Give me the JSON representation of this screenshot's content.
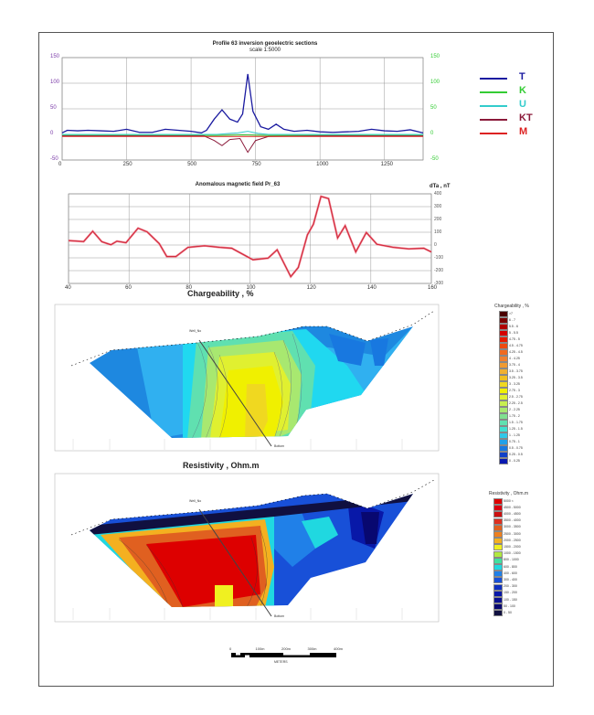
{
  "chart_data": [
    {
      "type": "line",
      "title": "Profile 63 inversion geoelectric sections",
      "subtitle": "scale 1:5000",
      "xlim": [
        0,
        1400
      ],
      "xticks": [
        0,
        250,
        500,
        750,
        1000,
        1250
      ],
      "ylim": [
        -50,
        150
      ],
      "yticks_left": [
        150,
        100,
        50,
        0,
        -50
      ],
      "yticks_right": [
        150,
        100,
        50,
        0,
        -50
      ],
      "legend": "right",
      "series": [
        {
          "name": "T",
          "color": "#1a1aa0",
          "x": [
            0,
            20,
            60,
            100,
            150,
            200,
            250,
            300,
            350,
            400,
            450,
            500,
            540,
            560,
            590,
            620,
            650,
            680,
            700,
            720,
            740,
            770,
            800,
            830,
            860,
            900,
            950,
            1000,
            1050,
            1100,
            1150,
            1200,
            1250,
            1300,
            1350,
            1400
          ],
          "y": [
            3,
            8,
            7,
            8,
            7,
            6,
            10,
            4,
            4,
            10,
            8,
            6,
            3,
            8,
            30,
            48,
            30,
            24,
            40,
            118,
            45,
            15,
            10,
            20,
            10,
            6,
            8,
            5,
            4,
            5,
            6,
            10,
            7,
            6,
            9,
            3
          ]
        },
        {
          "name": "K",
          "color": "#33cc33",
          "x": [
            0,
            200,
            400,
            600,
            700,
            800,
            1000,
            1200,
            1400
          ],
          "y": [
            -2,
            -2,
            -2,
            -2,
            -1,
            -2,
            -2,
            -2,
            -2
          ]
        },
        {
          "name": "U",
          "color": "#33cccc",
          "x": [
            0,
            200,
            400,
            600,
            680,
            720,
            760,
            800,
            1000,
            1200,
            1400
          ],
          "y": [
            0,
            0,
            0,
            0,
            3,
            6,
            2,
            0,
            0,
            0,
            0
          ]
        },
        {
          "name": "KT",
          "color": "#8b1a3a",
          "x": [
            0,
            200,
            400,
            550,
            590,
            620,
            650,
            690,
            720,
            750,
            800,
            1000,
            1200,
            1400
          ],
          "y": [
            -3,
            -3,
            -3,
            -3,
            -12,
            -22,
            -10,
            -8,
            -35,
            -12,
            -4,
            -3,
            -3,
            -3
          ]
        },
        {
          "name": "M",
          "color": "#dd2222",
          "x": [
            0,
            400,
            800,
            1400
          ],
          "y": [
            -4,
            -4,
            -4,
            -4
          ]
        }
      ]
    },
    {
      "type": "line",
      "title": "Anomalous magnetic field  Pr_63",
      "ylabel": "dTa , nT",
      "xlim": [
        40,
        160
      ],
      "xticks": [
        40,
        60,
        80,
        100,
        120,
        140,
        160
      ],
      "ylim": [
        -300,
        400
      ],
      "yticks": [
        400,
        300,
        200,
        100,
        0,
        -100,
        -200,
        -300
      ],
      "series": [
        {
          "name": "dTa",
          "color": "#cc2233",
          "x": [
            40,
            45,
            48,
            51,
            54,
            56,
            59,
            63,
            66,
            70,
            72.5,
            75.5,
            79.5,
            85,
            90,
            94,
            101,
            106,
            109,
            113.5,
            116,
            119,
            121,
            123.5,
            126,
            129,
            131.5,
            135,
            138.5,
            142,
            147.5,
            152.5,
            157.5,
            160
          ],
          "y": [
            35,
            27,
            108,
            26,
            2,
            30,
            18,
            132,
            103,
            11,
            -90,
            -90,
            -18,
            -6,
            -18,
            -25,
            -115,
            -102,
            -37,
            -247,
            -175,
            79,
            163,
            380,
            363,
            55,
            151,
            -54,
            98,
            6,
            -18,
            -30,
            -25,
            -54
          ]
        }
      ]
    },
    {
      "type": "heatmap",
      "title": "Chargeability , %",
      "legend_title": "Chargeability , %",
      "legend": [
        ">7",
        "6 - 7",
        "5.5 - 6",
        "5 - 5.5",
        "4.75 - 5",
        "4.5 - 4.75",
        "4.25 - 4.5",
        "4 - 4.25",
        "3.75 - 4",
        "3.5 - 3.75",
        "3.25 - 3.5",
        "3 - 3.25",
        "2.75 - 3",
        "2.5 - 2.75",
        "2.25 - 2.5",
        "2 - 2.25",
        "1.75 - 2",
        "1.5 - 1.75",
        "1.25 - 1.5",
        "1 - 1.25",
        "0.75 - 1",
        "0.5 - 0.75",
        "0.25 - 0.5",
        "0 - 0.25"
      ],
      "colors": [
        "#4a0000",
        "#7a0000",
        "#b00000",
        "#d40000",
        "#e81a00",
        "#ee4a10",
        "#f06a20",
        "#f08030",
        "#f09a30",
        "#f0b030",
        "#f0c020",
        "#f0d820",
        "#f0f000",
        "#e0f030",
        "#c8ee50",
        "#a8e870",
        "#80e090",
        "#60e0b0",
        "#40e0d0",
        "#30c8e8",
        "#20a0e8",
        "#1878e0",
        "#1040c8",
        "#0818b0"
      ]
    },
    {
      "type": "heatmap",
      "title": "Resistivity , Ohm.m",
      "legend_title": "Resistivity , Ohm.m",
      "legend": [
        "5000 <",
        "4500 - 5000",
        "4000 - 4500",
        "3500 - 4000",
        "3000 - 3500",
        "2500 - 3000",
        "2000 - 2500",
        "1500 - 2000",
        "1000 - 1500",
        "800 - 1000",
        "600 - 800",
        "400 - 600",
        "300 - 400",
        "200 - 300",
        "150 - 200",
        "100 - 150",
        "50 - 100",
        "0 - 50"
      ],
      "colors": [
        "#dd0000",
        "#d80010",
        "#cc1010",
        "#dd3020",
        "#e06020",
        "#ee8020",
        "#f4b020",
        "#f0f020",
        "#b0e840",
        "#40e0a0",
        "#20d8e0",
        "#2080e8",
        "#1850d8",
        "#1030c0",
        "#0818a8",
        "#081090",
        "#080870",
        "#101040"
      ]
    }
  ],
  "legend_labels": {
    "T": "T",
    "K": "K",
    "U": "U",
    "KT": "KT",
    "M": "M"
  },
  "section": {
    "well_label": "Well_No",
    "bottom_label": "Bottom"
  },
  "scalebar": {
    "ticks": [
      "0",
      "100m",
      "200m",
      "300m",
      "400m"
    ],
    "label": "METERS"
  }
}
